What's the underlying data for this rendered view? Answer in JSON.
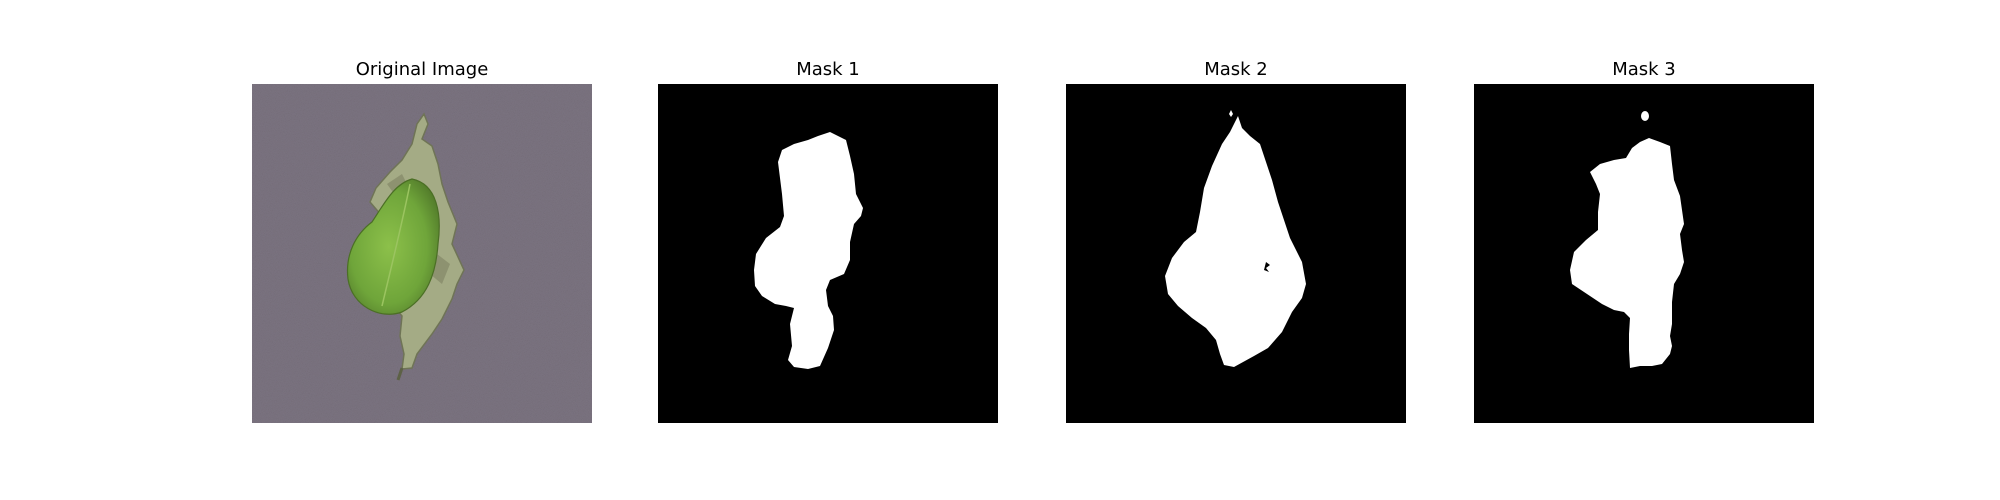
{
  "panels": [
    {
      "title": "Original Image",
      "kind": "photo",
      "subject": "leaf-photo"
    },
    {
      "title": "Mask 1",
      "kind": "mask"
    },
    {
      "title": "Mask 2",
      "kind": "mask"
    },
    {
      "title": "Mask 3",
      "kind": "mask"
    }
  ],
  "colors": {
    "background": "#ffffff",
    "mask_background": "#000000",
    "mask_foreground": "#ffffff",
    "photo_surface": "#7d7582",
    "leaf_green": "#6fa53a",
    "leaf_dry": "#a4ab85"
  }
}
